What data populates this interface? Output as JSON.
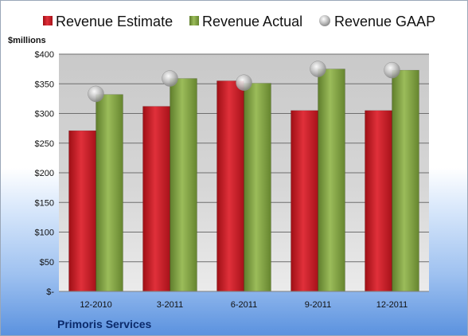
{
  "chart_data": {
    "type": "bar",
    "title": "",
    "unit_label": "$millions",
    "categories": [
      "12-2010",
      "3-2011",
      "6-2011",
      "9-2011",
      "12-2011"
    ],
    "series": [
      {
        "name": "Revenue Estimate",
        "kind": "bar",
        "color": "#c0141c",
        "values": [
          271,
          312,
          355,
          305,
          305
        ]
      },
      {
        "name": "Revenue Actual",
        "kind": "bar",
        "color": "#7a9a3c",
        "values": [
          332,
          359,
          351,
          375,
          373
        ]
      },
      {
        "name": "Revenue GAAP",
        "kind": "marker",
        "color": "#b8b8b8",
        "values": [
          333,
          359,
          352,
          375,
          373
        ]
      }
    ],
    "ylim": [
      0,
      400
    ],
    "yticks": [
      0,
      50,
      100,
      150,
      200,
      250,
      300,
      350,
      400
    ],
    "ytick_labels": [
      "$-",
      "$50",
      "$100",
      "$150",
      "$200",
      "$250",
      "$300",
      "$350",
      "$400"
    ],
    "grid": true,
    "legend_position": "top",
    "footer_label": "Primoris Services"
  }
}
